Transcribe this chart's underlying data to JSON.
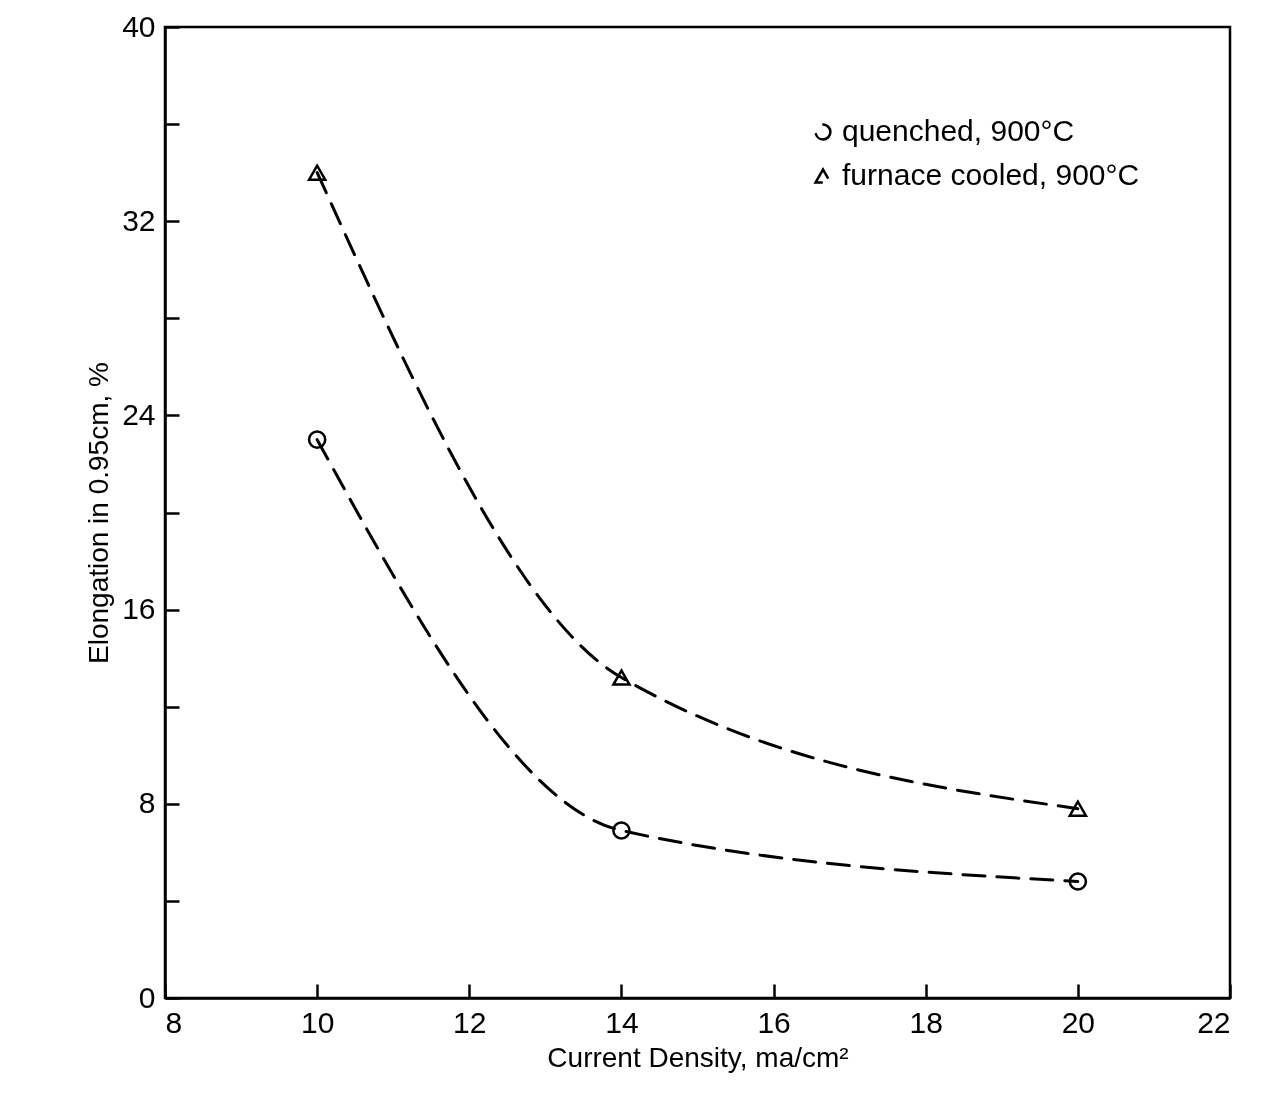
{
  "chart_data": {
    "type": "line",
    "xlabel": "Current Density, ma/cm²",
    "ylabel": "Elongation in 0.95cm, %",
    "xlim": [
      8,
      22
    ],
    "xticks": [
      8,
      10,
      12,
      14,
      16,
      18,
      20,
      22
    ],
    "ylim": [
      0,
      40
    ],
    "yticks": [
      0,
      {
        "value": 4,
        "label": null
      },
      8,
      {
        "value": 12,
        "label": null
      },
      16,
      {
        "value": 20,
        "label": null
      },
      24,
      {
        "value": 28,
        "label": null
      },
      32,
      {
        "value": 36,
        "label": null
      },
      40
    ],
    "x": [
      10,
      14,
      20
    ],
    "series": [
      {
        "name": "quenched, 900°C",
        "color": "#000000",
        "marker": "circle",
        "line_style": "dashed",
        "values": [
          23.0,
          6.9,
          4.8
        ]
      },
      {
        "name": "furnace cooled, 900°C",
        "color": "#000000",
        "marker": "triangle",
        "line_style": "dashed",
        "values": [
          34.0,
          13.2,
          7.8
        ]
      }
    ],
    "legend": "top right",
    "grid": false
  }
}
